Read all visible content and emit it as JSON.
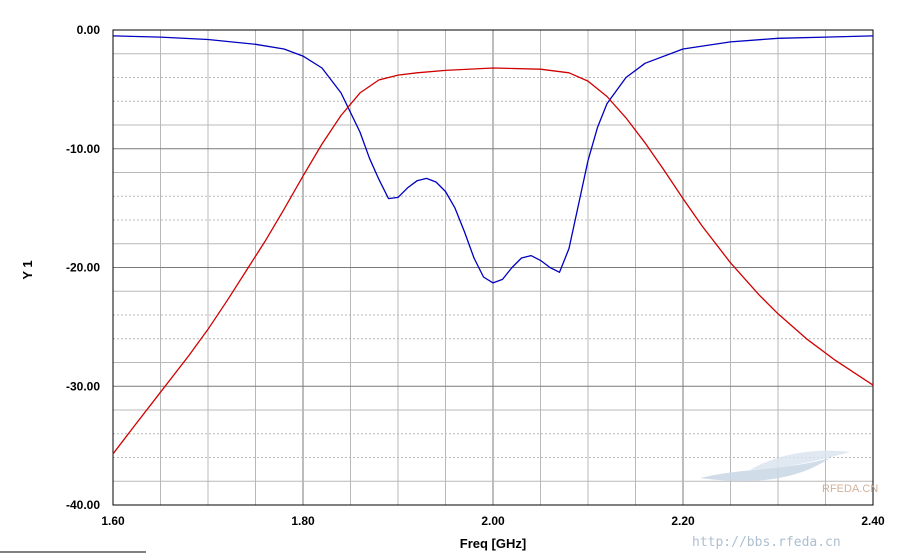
{
  "chart_data": {
    "type": "line",
    "title": "",
    "xlabel": "Freq [GHz]",
    "ylabel": "Y 1",
    "xlim": [
      1.6,
      2.4
    ],
    "ylim": [
      -40,
      0
    ],
    "x_ticks": [
      "1.60",
      "1.80",
      "2.00",
      "2.20",
      "2.40"
    ],
    "y_ticks": [
      "0.00",
      "-10.00",
      "-20.00",
      "-30.00",
      "-40.00"
    ],
    "grid": true,
    "series": [
      {
        "color": "#0000c0",
        "points": [
          [
            1.6,
            -0.5
          ],
          [
            1.65,
            -0.6
          ],
          [
            1.7,
            -0.8
          ],
          [
            1.75,
            -1.2
          ],
          [
            1.78,
            -1.6
          ],
          [
            1.8,
            -2.2
          ],
          [
            1.82,
            -3.2
          ],
          [
            1.84,
            -5.3
          ],
          [
            1.86,
            -8.6
          ],
          [
            1.87,
            -10.8
          ],
          [
            1.88,
            -12.6
          ],
          [
            1.89,
            -14.2
          ],
          [
            1.9,
            -14.1
          ],
          [
            1.91,
            -13.3
          ],
          [
            1.92,
            -12.7
          ],
          [
            1.93,
            -12.5
          ],
          [
            1.94,
            -12.8
          ],
          [
            1.95,
            -13.6
          ],
          [
            1.96,
            -15.0
          ],
          [
            1.97,
            -17.0
          ],
          [
            1.98,
            -19.2
          ],
          [
            1.99,
            -20.8
          ],
          [
            2.0,
            -21.3
          ],
          [
            2.01,
            -21.0
          ],
          [
            2.02,
            -20.0
          ],
          [
            2.03,
            -19.2
          ],
          [
            2.04,
            -19.0
          ],
          [
            2.05,
            -19.4
          ],
          [
            2.06,
            -20.0
          ],
          [
            2.07,
            -20.4
          ],
          [
            2.08,
            -18.4
          ],
          [
            2.09,
            -14.7
          ],
          [
            2.1,
            -11.0
          ],
          [
            2.11,
            -8.2
          ],
          [
            2.12,
            -6.2
          ],
          [
            2.14,
            -4.0
          ],
          [
            2.16,
            -2.8
          ],
          [
            2.2,
            -1.6
          ],
          [
            2.25,
            -1.0
          ],
          [
            2.3,
            -0.7
          ],
          [
            2.35,
            -0.6
          ],
          [
            2.4,
            -0.5
          ]
        ]
      },
      {
        "color": "#d00000",
        "points": [
          [
            1.6,
            -35.7
          ],
          [
            1.62,
            -33.6
          ],
          [
            1.65,
            -30.5
          ],
          [
            1.68,
            -27.4
          ],
          [
            1.7,
            -25.2
          ],
          [
            1.72,
            -22.8
          ],
          [
            1.74,
            -20.3
          ],
          [
            1.76,
            -17.8
          ],
          [
            1.78,
            -15.1
          ],
          [
            1.8,
            -12.3
          ],
          [
            1.82,
            -9.6
          ],
          [
            1.84,
            -7.2
          ],
          [
            1.86,
            -5.3
          ],
          [
            1.88,
            -4.2
          ],
          [
            1.9,
            -3.8
          ],
          [
            1.92,
            -3.6
          ],
          [
            1.95,
            -3.4
          ],
          [
            2.0,
            -3.2
          ],
          [
            2.05,
            -3.3
          ],
          [
            2.08,
            -3.6
          ],
          [
            2.1,
            -4.3
          ],
          [
            2.12,
            -5.6
          ],
          [
            2.14,
            -7.4
          ],
          [
            2.16,
            -9.5
          ],
          [
            2.18,
            -11.8
          ],
          [
            2.2,
            -14.2
          ],
          [
            2.22,
            -16.5
          ],
          [
            2.25,
            -19.6
          ],
          [
            2.28,
            -22.3
          ],
          [
            2.3,
            -23.9
          ],
          [
            2.33,
            -26.0
          ],
          [
            2.36,
            -27.8
          ],
          [
            2.4,
            -29.9
          ]
        ]
      }
    ]
  },
  "watermark": {
    "brand": "RFEDA.CN",
    "url": "http://bbs.rfeda.cn"
  }
}
